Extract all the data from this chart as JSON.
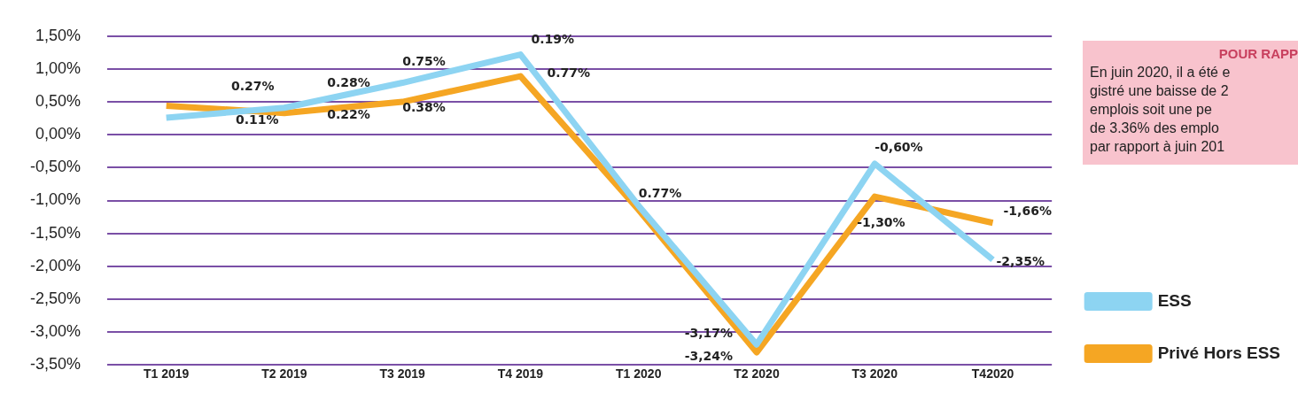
{
  "chart_data": {
    "type": "line",
    "categories": [
      "T1 2019",
      "T2 2019",
      "T3 2019",
      "T4 2019",
      "T1 2020",
      "T2 2020",
      "T3 2020",
      "T42020"
    ],
    "series": [
      {
        "name": "ESS",
        "color": "#8dd4f2",
        "values": [
          0.26,
          0.41,
          0.79,
          1.22,
          -1.08,
          -3.19,
          -0.44,
          -1.9
        ]
      },
      {
        "name": "Privé Hors ESS",
        "color": "#f5a623",
        "values": [
          0.44,
          0.33,
          0.5,
          0.89,
          -1.14,
          -3.31,
          -0.94,
          -1.34
        ]
      }
    ],
    "ylim": [
      -3.5,
      1.5
    ],
    "yticks": [
      {
        "value": -3.5,
        "label": "-3,50%"
      },
      {
        "value": -3,
        "label": "-3,00%"
      },
      {
        "value": -2.5,
        "label": "-2,50%"
      },
      {
        "value": -2,
        "label": "-2,00%"
      },
      {
        "value": -1.5,
        "label": "-1,50%"
      },
      {
        "value": -1,
        "label": "-1,00%"
      },
      {
        "value": -0.5,
        "label": "-0,50%"
      },
      {
        "value": 0,
        "label": "0,00%"
      },
      {
        "value": 0.5,
        "label": "0,50%"
      },
      {
        "value": 1,
        "label": "1,00%"
      },
      {
        "value": 1.5,
        "label": "1,50%"
      }
    ],
    "grid": "y",
    "legend": "right",
    "marker": "none",
    "line_style": "solid",
    "annotations": [
      "0.27%",
      "0.11%",
      "0.28%",
      "0.22%",
      "0.75%",
      "0.38%",
      "0.19%",
      "0.77%",
      "0.77%",
      "-3,17%",
      "-3,24%",
      "-0,60%",
      "-1,30%",
      "-1,66%",
      "-2,35%",
      "POUR RAPP",
      "En juin 2020, il a été e",
      "gistré une baisse de 2",
      "emplois soit une pe",
      "de 3.36% des emplo",
      "par rapport à juin 201"
    ]
  }
}
